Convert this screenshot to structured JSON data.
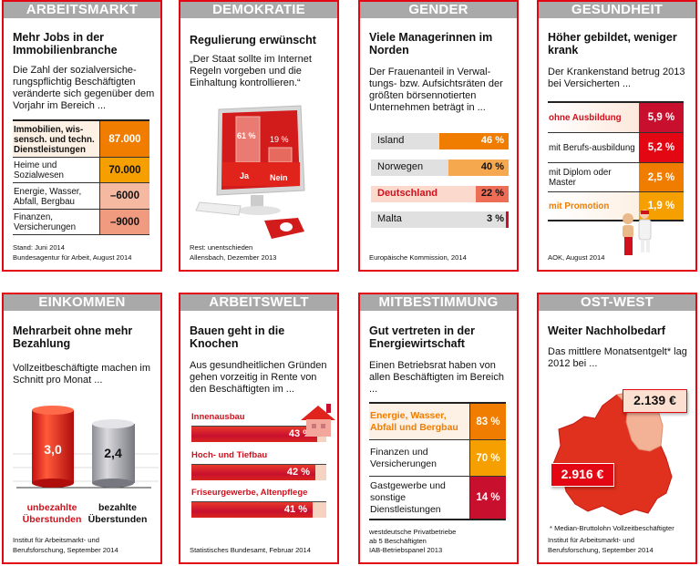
{
  "cards": [
    {
      "header": "ARBEITSMARKT",
      "title": "Mehr Jobs in der Immobilienbranche",
      "text": "Die Zahl der sozialversiche-rungspflichtig Beschäftigten veränderte sich gegenüber dem Vorjahr im Bereich ...",
      "rows": [
        {
          "label": "Immobilien, wis-sensch. und techn. Dienstleistungen",
          "value": "87.000"
        },
        {
          "label": "Heime und Sozialwesen",
          "value": "70.000"
        },
        {
          "label": "Energie, Wasser, Abfall, Bergbau",
          "value": "–6000"
        },
        {
          "label": "Finanzen, Versicherungen",
          "value": "–9000"
        }
      ],
      "foot1": "Stand: Juni 2014",
      "foot2": "Bundesagentur für Arbeit, August 2014"
    },
    {
      "header": "DEMOKRATIE",
      "title": "Regulierung erwünscht",
      "text": "„Der Staat sollte im Internet Regeln vorgeben und die Einhaltung kontrollieren.“",
      "bars": [
        {
          "label": "Ja",
          "value": "61 %",
          "pct": 61
        },
        {
          "label": "Nein",
          "value": "19 %",
          "pct": 19
        }
      ],
      "foot1": "Rest: unentschieden",
      "foot2": "Allensbach, Dezember 2013"
    },
    {
      "header": "GENDER",
      "title": "Viele Managerinnen im Norden",
      "text": "Der Frauenanteil in Verwal-tungs- bzw. Aufsichtsräten der größten börsennotierten Unternehmen beträgt in ...",
      "bars": [
        {
          "label": "Island",
          "value": "46 %",
          "pct": 46
        },
        {
          "label": "Norwegen",
          "value": "40 %",
          "pct": 40
        },
        {
          "label": "Deutschland",
          "value": "22 %",
          "pct": 22
        },
        {
          "label": "Malta",
          "value": "3 %",
          "pct": 3
        }
      ],
      "foot1": "Europäische Kommission, 2014"
    },
    {
      "header": "GESUNDHEIT",
      "title": "Höher gebildet, weniger krank",
      "text": "Der Krankenstand betrug 2013 bei Versicherten ...",
      "rows": [
        {
          "label": "ohne Ausbildung",
          "value": "5,9 %"
        },
        {
          "label": "mit Berufs-ausbildung",
          "value": "5,2 %"
        },
        {
          "label": "mit Diplom oder Master",
          "value": "2,5 %"
        },
        {
          "label": "mit Promotion",
          "value": "1,9 %"
        }
      ],
      "foot1": "AOK, August 2014"
    },
    {
      "header": "EINKOMMEN",
      "title": "Mehrarbeit ohne mehr Bezahlung",
      "text": "Vollzeitbeschäftigte machen im Schnitt pro Monat ...",
      "bars": [
        {
          "label": "unbezahlte Überstunden",
          "value": "3,0",
          "num": 3.0
        },
        {
          "label": "bezahlte Überstunden",
          "value": "2,4",
          "num": 2.4
        }
      ],
      "foot1": "Institut für Arbeitsmarkt- und",
      "foot2": "Berufsforschung, September 2014"
    },
    {
      "header": "ARBEITSWELT",
      "title": "Bauen geht in die Knochen",
      "text": "Aus gesundheitlichen Gründen gehen vorzeitig in Rente von den Beschäftigten im ...",
      "bars": [
        {
          "label": "Innenausbau",
          "value": "43 %",
          "pct": 43
        },
        {
          "label": "Hoch- und Tiefbau",
          "value": "42 %",
          "pct": 42
        },
        {
          "label": "Friseurgewerbe, Altenpflege",
          "value": "41 %",
          "pct": 41
        }
      ],
      "foot1": "Statistisches Bundesamt, Februar 2014"
    },
    {
      "header": "MITBESTIMMUNG",
      "title": "Gut vertreten in der Energiewirtschaft",
      "text": "Einen Betriebsrat haben von allen Beschäftigten im Bereich ...",
      "rows": [
        {
          "label": "Energie, Wasser, Abfall und Bergbau",
          "value": "83 %"
        },
        {
          "label": "Finanzen und Versicherungen",
          "value": "70 %"
        },
        {
          "label": "Gastgewerbe und sonstige Dienstleistungen",
          "value": "14 %"
        }
      ],
      "foot1": "westdeutsche Privatbetriebe",
      "foot2": "ab 5 Beschäftigten",
      "foot3": "IAB-Betriebspanel 2013"
    },
    {
      "header": "OST-WEST",
      "title": "Weiter Nachholbedarf",
      "text": "Das mittlere Monatsentgelt* lag 2012 bei ...",
      "east": "2.139 €",
      "west": "2.916 €",
      "note": "* Median-Bruttolohn Vollzeitbeschäftigter",
      "foot1": "Institut für Arbeitsmarkt- und",
      "foot2": "Berufsforschung, September 2014"
    }
  ],
  "colors": {
    "border": "#e30613",
    "header": "#a9a9a9",
    "orange": "#f07d00",
    "light_orange": "#f5a000",
    "red": "#e30613",
    "crimson": "#c8102e"
  }
}
